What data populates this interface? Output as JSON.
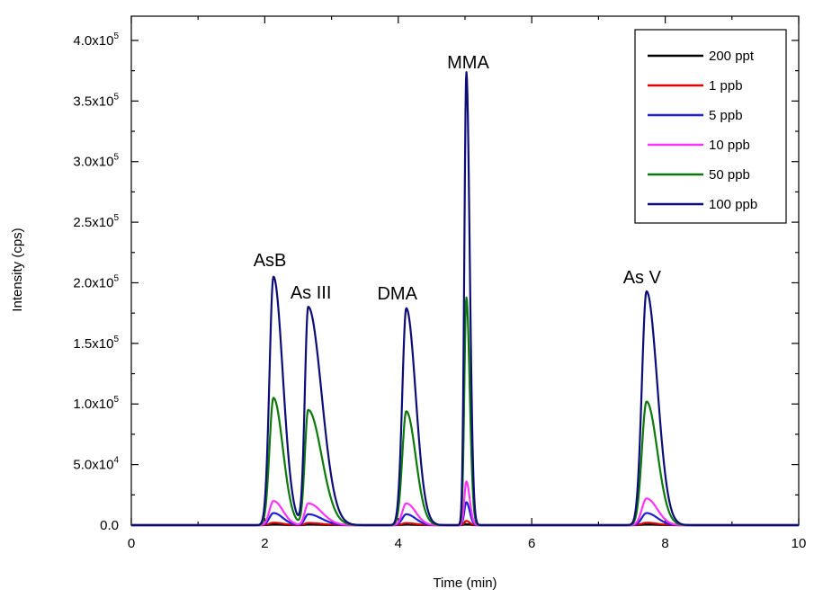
{
  "chart_data": {
    "type": "line",
    "xlabel": "Time (min)",
    "ylabel": "Intensity (cps)",
    "xlim": [
      0,
      10
    ],
    "ylim": [
      0,
      420000
    ],
    "x_ticks": [
      0,
      2,
      4,
      6,
      8,
      10
    ],
    "x_tick_labels": [
      "0",
      "2",
      "4",
      "6",
      "8",
      "10"
    ],
    "y_ticks": [
      0,
      50000,
      100000,
      150000,
      200000,
      250000,
      300000,
      350000,
      400000
    ],
    "y_tick_labels": [
      {
        "mantissa": "0.0",
        "exp": ""
      },
      {
        "mantissa": "5.0x10",
        "exp": "4"
      },
      {
        "mantissa": "1.0x10",
        "exp": "5"
      },
      {
        "mantissa": "1.5x10",
        "exp": "5"
      },
      {
        "mantissa": "2.0x10",
        "exp": "5"
      },
      {
        "mantissa": "2.5x10",
        "exp": "5"
      },
      {
        "mantissa": "3.0x10",
        "exp": "5"
      },
      {
        "mantissa": "3.5x10",
        "exp": "5"
      },
      {
        "mantissa": "4.0x10",
        "exp": "5"
      }
    ],
    "grid": false,
    "legend_position": "top-right",
    "peaks": [
      {
        "name": "AsB",
        "time": 2.13,
        "width_left": 0.06,
        "width_right": 0.14
      },
      {
        "name": "As III",
        "time": 2.65,
        "width_left": 0.05,
        "width_right": 0.2
      },
      {
        "name": "DMA",
        "time": 4.12,
        "width_left": 0.06,
        "width_right": 0.14
      },
      {
        "name": "MMA",
        "time": 5.02,
        "width_left": 0.03,
        "width_right": 0.05
      },
      {
        "name": "As V",
        "time": 7.72,
        "width_left": 0.07,
        "width_right": 0.16
      }
    ],
    "series": [
      {
        "name": "200 ppt",
        "color": "#000000",
        "heights": [
          500,
          450,
          430,
          800,
          500
        ]
      },
      {
        "name": "1 ppb",
        "color": "#e00000",
        "heights": [
          2000,
          1800,
          1700,
          3500,
          2000
        ]
      },
      {
        "name": "5 ppb",
        "color": "#1f1fd6",
        "heights": [
          10000,
          9000,
          9000,
          19000,
          10000
        ]
      },
      {
        "name": "10 ppb",
        "color": "#ff33ff",
        "heights": [
          20000,
          18000,
          18000,
          36000,
          22000
        ]
      },
      {
        "name": "50 ppb",
        "color": "#0b7a0b",
        "heights": [
          105000,
          95000,
          94000,
          188000,
          102000
        ]
      },
      {
        "name": "100 ppb",
        "color": "#0d0d7a",
        "heights": [
          205000,
          180000,
          179000,
          374000,
          193000
        ]
      }
    ]
  }
}
